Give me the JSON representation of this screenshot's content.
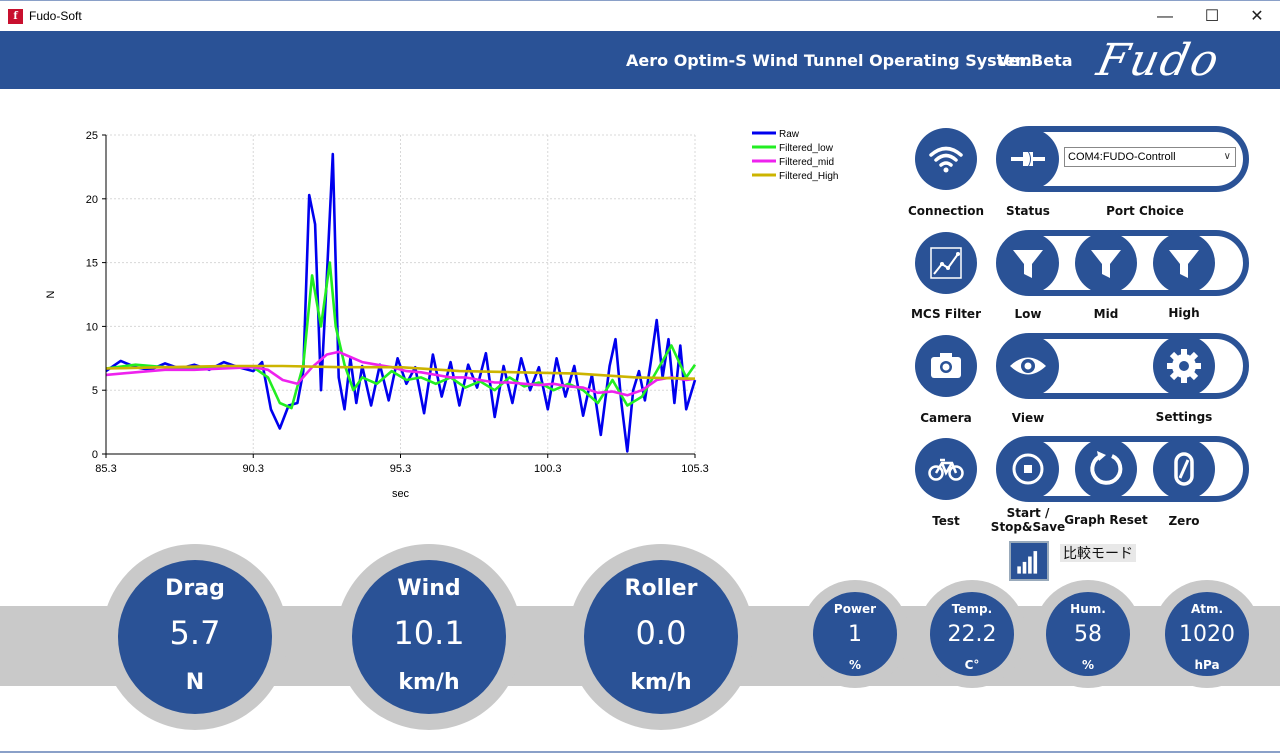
{
  "window": {
    "title": "Fudo-Soft",
    "minimize": "—",
    "maximize": "☐",
    "close": "✕"
  },
  "header": {
    "title": "Aero Optim-S Wind Tunnel Operating System",
    "version": "Ver.Beta",
    "logo": "Fudo"
  },
  "chart_data": {
    "type": "line",
    "xlabel": "sec",
    "ylabel": "N",
    "xlim": [
      85.3,
      105.3
    ],
    "ylim": [
      0,
      25
    ],
    "x_ticks": [
      "85.3",
      "90.3",
      "95.3",
      "100.3",
      "105.3"
    ],
    "y_ticks": [
      "0",
      "5",
      "10",
      "15",
      "20",
      "25"
    ],
    "grid": true,
    "legend_position": "top-right",
    "series": [
      {
        "name": "Raw",
        "color": "#0000ee",
        "x": [
          85.3,
          85.8,
          86.3,
          86.8,
          87.3,
          87.8,
          88.3,
          88.8,
          89.3,
          89.8,
          90.3,
          90.6,
          90.9,
          91.2,
          91.5,
          91.8,
          92.0,
          92.2,
          92.4,
          92.6,
          92.8,
          93.0,
          93.2,
          93.4,
          93.6,
          93.8,
          94.0,
          94.3,
          94.6,
          94.9,
          95.2,
          95.5,
          95.8,
          96.1,
          96.4,
          96.7,
          97.0,
          97.3,
          97.6,
          97.9,
          98.2,
          98.5,
          98.8,
          99.1,
          99.4,
          99.7,
          100.0,
          100.3,
          100.6,
          100.9,
          101.2,
          101.5,
          101.8,
          102.1,
          102.4,
          102.6,
          102.8,
          103.0,
          103.2,
          103.4,
          103.6,
          103.8,
          104.0,
          104.2,
          104.4,
          104.6,
          104.8,
          105.0,
          105.3
        ],
        "y": [
          6.5,
          7.3,
          6.8,
          6.6,
          7.1,
          6.7,
          7.0,
          6.6,
          7.2,
          6.8,
          6.5,
          7.2,
          3.5,
          2.0,
          3.8,
          4.0,
          6.5,
          20.3,
          18.0,
          5.0,
          14.0,
          23.5,
          6.0,
          3.5,
          7.5,
          4.0,
          6.9,
          3.8,
          7.0,
          4.2,
          7.5,
          5.5,
          6.8,
          3.2,
          7.8,
          4.5,
          7.2,
          3.8,
          7.0,
          5.2,
          7.9,
          2.9,
          6.9,
          4.0,
          7.5,
          5.0,
          6.8,
          3.5,
          7.5,
          4.5,
          6.9,
          3.0,
          6.2,
          1.5,
          6.9,
          9.0,
          4.0,
          0.2,
          5.0,
          6.5,
          4.2,
          7.2,
          10.5,
          6.0,
          9.0,
          4.0,
          8.5,
          3.5,
          5.8
        ]
      },
      {
        "name": "Filtered_low",
        "color": "#22ee22",
        "x": [
          85.3,
          86.3,
          87.3,
          88.3,
          89.3,
          90.3,
          90.8,
          91.2,
          91.6,
          92.0,
          92.3,
          92.6,
          92.9,
          93.1,
          93.4,
          93.7,
          94.0,
          94.5,
          95.0,
          95.5,
          96.0,
          96.5,
          97.0,
          97.5,
          98.0,
          98.5,
          99.0,
          99.5,
          100.0,
          100.5,
          101.0,
          101.5,
          102.0,
          102.5,
          103.0,
          103.5,
          104.0,
          104.5,
          105.0,
          105.3
        ],
        "y": [
          6.7,
          7.0,
          6.8,
          6.7,
          6.9,
          6.8,
          6.0,
          4.0,
          3.6,
          7.0,
          14.0,
          10.0,
          15.0,
          10.0,
          7.0,
          5.0,
          6.0,
          5.5,
          6.5,
          5.8,
          6.0,
          5.5,
          6.0,
          5.2,
          5.7,
          5.0,
          6.0,
          5.3,
          5.6,
          5.0,
          5.5,
          5.0,
          4.0,
          5.8,
          3.8,
          4.5,
          6.5,
          8.5,
          6.0,
          7.0
        ]
      },
      {
        "name": "Filtered_mid",
        "color": "#ee22ee",
        "x": [
          85.3,
          86.3,
          87.3,
          88.3,
          89.3,
          90.3,
          90.8,
          91.3,
          91.8,
          92.3,
          92.8,
          93.2,
          93.6,
          94.0,
          94.5,
          95.0,
          95.5,
          96.0,
          96.5,
          97.0,
          97.5,
          98.0,
          98.5,
          99.0,
          99.5,
          100.0,
          100.5,
          101.0,
          101.5,
          102.0,
          102.5,
          103.0,
          103.5,
          104.0,
          104.5,
          105.0,
          105.3
        ],
        "y": [
          6.2,
          6.4,
          6.6,
          6.6,
          6.7,
          6.8,
          6.6,
          5.8,
          5.5,
          6.8,
          7.8,
          8.0,
          7.6,
          7.2,
          7.0,
          6.8,
          6.5,
          6.4,
          6.2,
          6.0,
          6.0,
          5.8,
          5.6,
          5.6,
          5.5,
          5.4,
          5.5,
          5.3,
          5.2,
          4.8,
          4.9,
          4.6,
          5.0,
          5.8,
          6.0,
          5.8,
          5.9
        ]
      },
      {
        "name": "Filtered_High",
        "color": "#ccb400",
        "x": [
          85.3,
          87.3,
          89.3,
          91.3,
          93.3,
          95.3,
          97.3,
          99.3,
          101.3,
          103.3,
          105.3
        ],
        "y": [
          6.7,
          6.8,
          6.9,
          6.9,
          6.8,
          6.8,
          6.5,
          6.4,
          6.3,
          6.0,
          5.9
        ]
      }
    ]
  },
  "controls": {
    "connection_label": "Connection",
    "status_label": "Status",
    "port_choice_label": "Port Choice",
    "port_value": "COM4:FUDO-Controll",
    "mcs_filter_label": "MCS Filter",
    "low_label": "Low",
    "mid_label": "Mid",
    "high_label": "High",
    "camera_label": "Camera",
    "view_label": "View",
    "settings_label": "Settings",
    "test_label": "Test",
    "start_label_1": "Start /",
    "start_label_2": "Stop&Save",
    "graph_reset_label": "Graph Reset",
    "zero_label": "Zero",
    "compare_label": "比較モード"
  },
  "gauges": {
    "drag": {
      "title": "Drag",
      "value": "5.7",
      "unit": "N"
    },
    "wind": {
      "title": "Wind",
      "value": "10.1",
      "unit": "km/h"
    },
    "roller": {
      "title": "Roller",
      "value": "0.0",
      "unit": "km/h"
    },
    "power": {
      "title": "Power",
      "value": "1",
      "unit": "%"
    },
    "temp": {
      "title": "Temp.",
      "value": "22.2",
      "unit": "C°"
    },
    "hum": {
      "title": "Hum.",
      "value": "58",
      "unit": "%"
    },
    "atm": {
      "title": "Atm.",
      "value": "1020",
      "unit": "hPa"
    }
  }
}
